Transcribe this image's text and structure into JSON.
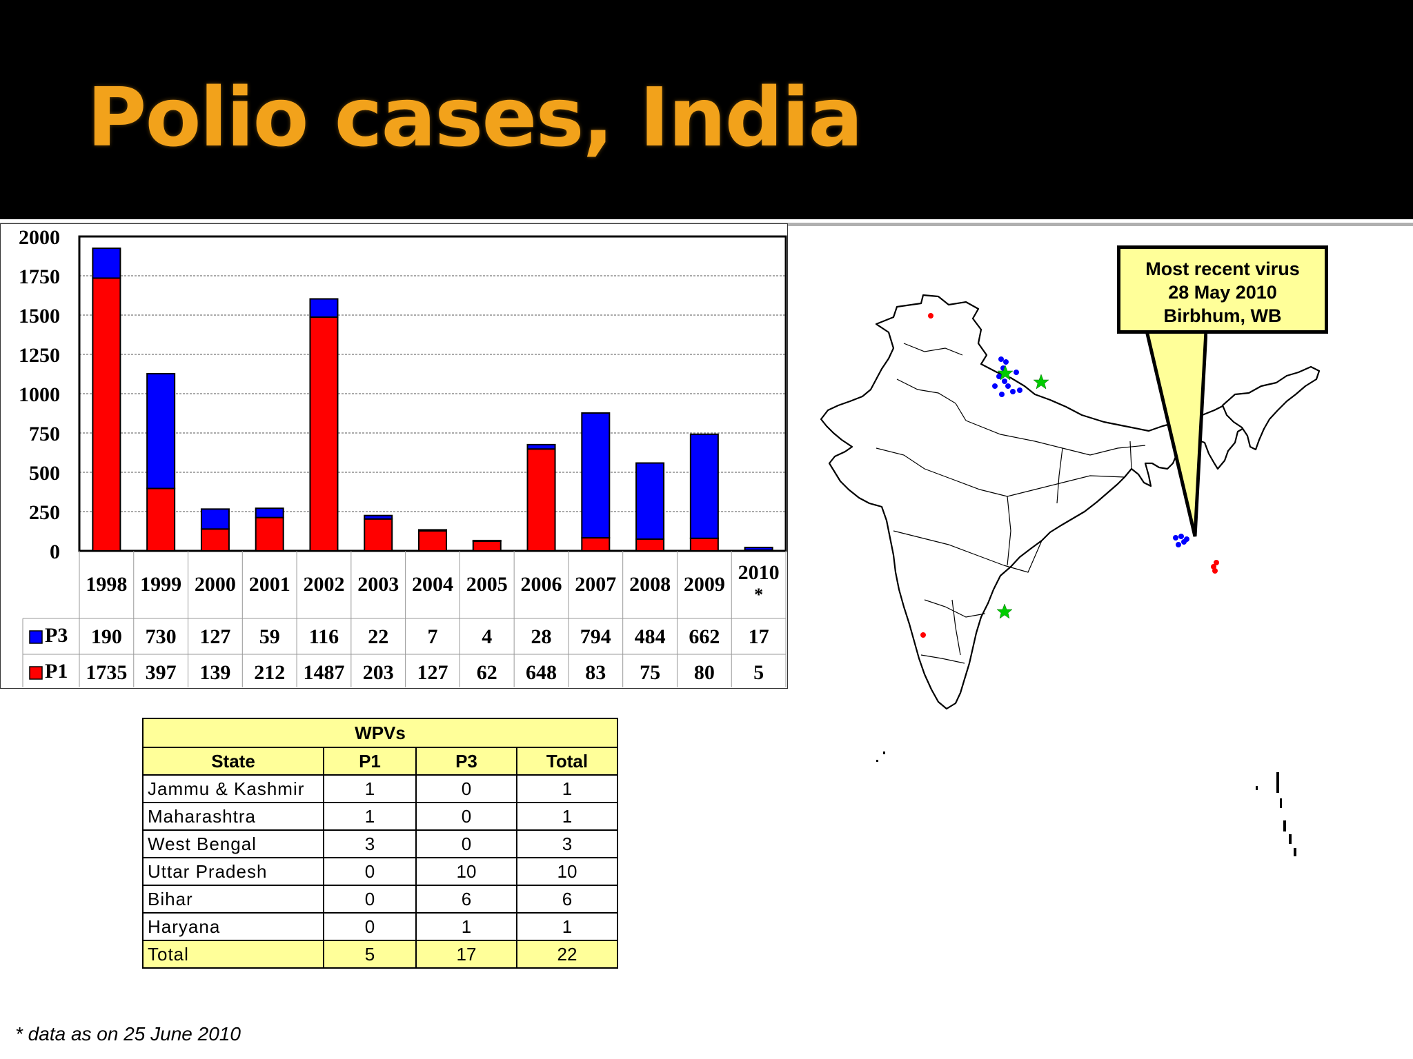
{
  "slide": {
    "title": "Polio cases, India",
    "footnote": "* data as on 25 June 2010"
  },
  "callout": {
    "lines": [
      "Most recent virus",
      "28 May 2010",
      "Birbhum, WB"
    ]
  },
  "colors": {
    "title": "#f2a21b",
    "P1": "#ff0000",
    "P3": "#0000ff",
    "table_header_bg": "#ffff99",
    "star": "#00cc00"
  },
  "chart_data": {
    "type": "bar",
    "stacked": true,
    "categories": [
      "1998",
      "1999",
      "2000",
      "2001",
      "2002",
      "2003",
      "2004",
      "2005",
      "2006",
      "2007",
      "2008",
      "2009",
      "2010\n*"
    ],
    "series": [
      {
        "name": "P1",
        "values": [
          1735,
          397,
          139,
          212,
          1487,
          203,
          127,
          62,
          648,
          83,
          75,
          80,
          5
        ]
      },
      {
        "name": "P3",
        "values": [
          190,
          730,
          127,
          59,
          116,
          22,
          7,
          4,
          28,
          794,
          484,
          662,
          17
        ]
      }
    ],
    "yticks": [
      "0",
      "250",
      "500",
      "750",
      "1000",
      "1250",
      "1500",
      "1750",
      "2000"
    ],
    "ylim": [
      0,
      2000
    ],
    "grid": true,
    "data_table": true
  },
  "wpv_table": {
    "caption": "WPVs",
    "headers": [
      "State",
      "P1",
      "P3",
      "Total"
    ],
    "rows": [
      [
        "Jammu & Kashmir",
        "1",
        "0",
        "1"
      ],
      [
        "Maharashtra",
        "1",
        "0",
        "1"
      ],
      [
        "West Bengal",
        "3",
        "0",
        "3"
      ],
      [
        "Uttar Pradesh",
        "0",
        "10",
        "10"
      ],
      [
        "Bihar",
        "0",
        "6",
        "6"
      ],
      [
        "Haryana",
        "0",
        "1",
        "1"
      ]
    ],
    "total": [
      "Total",
      "5",
      "17",
      "22"
    ]
  }
}
